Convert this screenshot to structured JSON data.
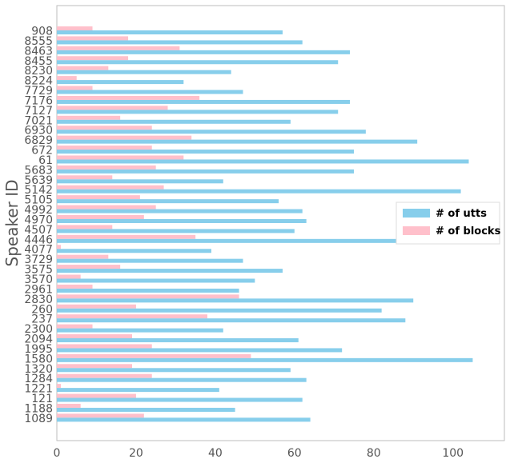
{
  "chart_data": {
    "type": "bar",
    "orientation": "horizontal",
    "title": "",
    "xlabel": "",
    "ylabel": "Speaker ID",
    "xlim": [
      0,
      113
    ],
    "xticks": [
      0,
      20,
      40,
      60,
      80,
      100
    ],
    "grid": false,
    "legend_position": "center-right",
    "categories": [
      "908",
      "8555",
      "8463",
      "8455",
      "8230",
      "8224",
      "7729",
      "7176",
      "7127",
      "7021",
      "6930",
      "6829",
      "672",
      "61",
      "5683",
      "5639",
      "5142",
      "5105",
      "4992",
      "4970",
      "4507",
      "4446",
      "4077",
      "3729",
      "3575",
      "3570",
      "2961",
      "2830",
      "260",
      "237",
      "2300",
      "2094",
      "1995",
      "1580",
      "1320",
      "1284",
      "1221",
      "121",
      "1188",
      "1089"
    ],
    "series": [
      {
        "name": "# of utts",
        "color": "#87ceeb",
        "values": [
          57,
          62,
          74,
          71,
          44,
          32,
          47,
          74,
          71,
          59,
          78,
          91,
          75,
          104,
          75,
          42,
          102,
          56,
          62,
          63,
          60,
          108,
          39,
          47,
          57,
          50,
          46,
          90,
          82,
          88,
          42,
          61,
          72,
          105,
          59,
          63,
          41,
          62,
          45,
          64
        ]
      },
      {
        "name": "# of blocks",
        "color": "#ffc0cb",
        "values": [
          9,
          18,
          31,
          18,
          13,
          5,
          9,
          36,
          28,
          16,
          24,
          34,
          24,
          32,
          25,
          14,
          27,
          21,
          25,
          22,
          14,
          35,
          1,
          13,
          16,
          6,
          9,
          46,
          20,
          38,
          9,
          19,
          24,
          49,
          19,
          24,
          1,
          20,
          6,
          22
        ]
      }
    ]
  }
}
